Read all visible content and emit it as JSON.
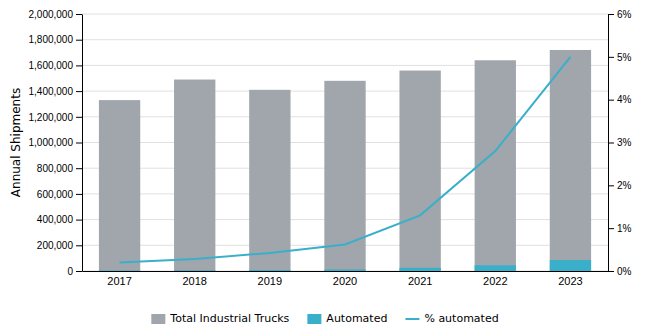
{
  "chart_data": {
    "type": "bar",
    "categories": [
      "2017",
      "2018",
      "2019",
      "2020",
      "2021",
      "2022",
      "2023"
    ],
    "series": [
      {
        "name": "Total Industrial Trucks",
        "type": "bar",
        "color": "#a0a6ab",
        "values": [
          1330000,
          1490000,
          1410000,
          1480000,
          1560000,
          1640000,
          1720000
        ]
      },
      {
        "name": "Automated",
        "type": "bar",
        "color": "#3aafca",
        "values": [
          4000,
          6000,
          8000,
          12000,
          25000,
          45000,
          85000
        ]
      },
      {
        "name": "% automated",
        "type": "line",
        "axis": "y2",
        "color": "#3aafca",
        "values": [
          0.2,
          0.28,
          0.42,
          0.62,
          1.3,
          2.8,
          5.0
        ]
      }
    ],
    "y_label": "Annual Shipments",
    "ylim": [
      0,
      2000000
    ],
    "yticks": [
      0,
      {
        "value": 200000,
        "label": "200,000"
      },
      {
        "value": 400000,
        "label": "400,000"
      },
      {
        "value": 600000,
        "label": "600,000"
      },
      {
        "value": 800000,
        "label": "800,000"
      },
      {
        "value": 1000000,
        "label": "1,000,000"
      },
      {
        "value": 1200000,
        "label": "1,200,000"
      },
      {
        "value": 1400000,
        "label": "1,400,000"
      },
      {
        "value": 1600000,
        "label": "1,600,000"
      },
      {
        "value": 1800000,
        "label": "1,800,000"
      },
      {
        "value": 2000000,
        "label": "2,000,000"
      }
    ],
    "y2lim": [
      0,
      6
    ],
    "y2ticks": [
      {
        "value": 0,
        "label": "0%"
      },
      {
        "value": 1,
        "label": "1%"
      },
      {
        "value": 2,
        "label": "2%"
      },
      {
        "value": 3,
        "label": "3%"
      },
      {
        "value": 4,
        "label": "4%"
      },
      {
        "value": 5,
        "label": "5%"
      },
      {
        "value": 6,
        "label": "6%"
      }
    ],
    "grid": true,
    "legend": "bottom"
  }
}
